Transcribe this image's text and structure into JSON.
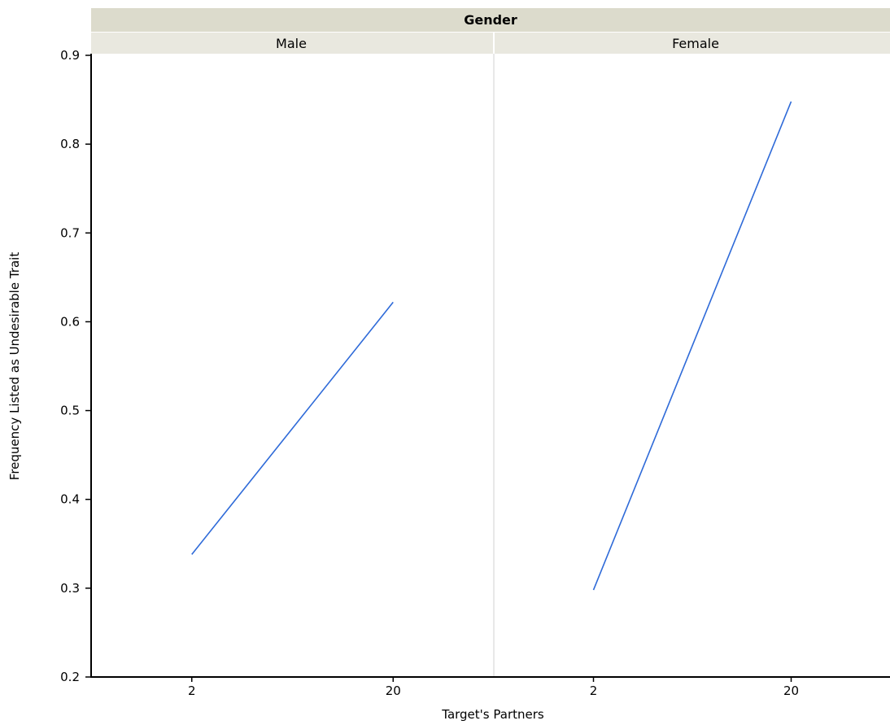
{
  "chart_data": {
    "type": "line",
    "group_title": "Gender",
    "panels": [
      {
        "name": "Male",
        "categories": [
          "2",
          "20"
        ],
        "values": [
          0.338,
          0.622
        ]
      },
      {
        "name": "Female",
        "categories": [
          "2",
          "20"
        ],
        "values": [
          0.298,
          0.848
        ]
      }
    ],
    "xlabel": "Target's Partners",
    "ylabel": "Frequency Listed as Undesirable Trait",
    "ylim": [
      0.2,
      0.9
    ],
    "yticks": [
      "0.2",
      "0.3",
      "0.4",
      "0.5",
      "0.6",
      "0.7",
      "0.8",
      "0.9"
    ],
    "grid": false,
    "legend": "none"
  },
  "colors": {
    "line": "#2e6ad8",
    "header_top": "#dcdbcc",
    "header_sub": "#e9e8df",
    "divider": "#d0d0d0",
    "axis": "#000000"
  }
}
